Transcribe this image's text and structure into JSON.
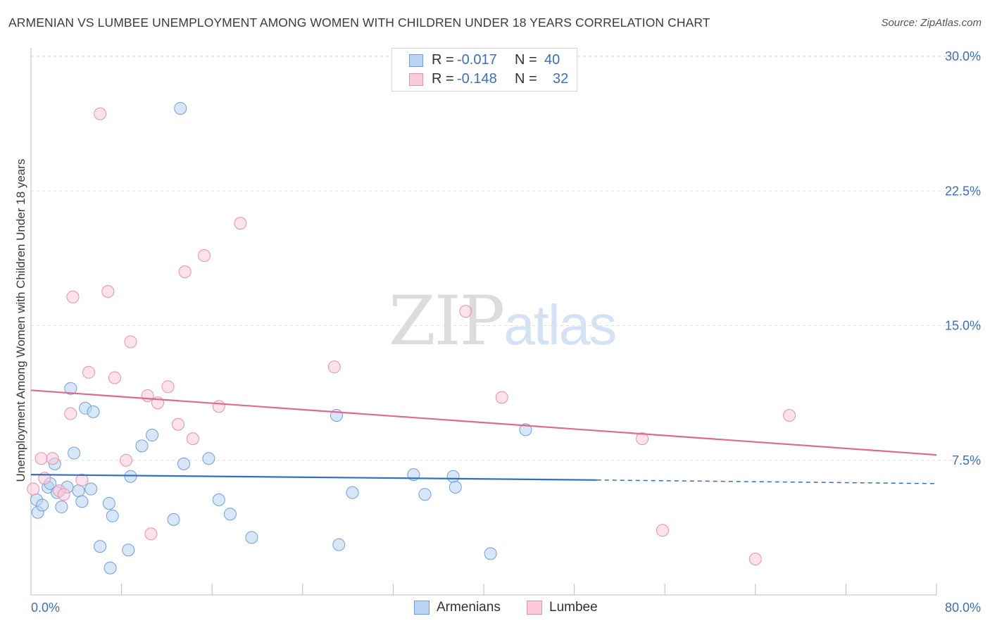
{
  "title": "ARMENIAN VS LUMBEE UNEMPLOYMENT AMONG WOMEN WITH CHILDREN UNDER 18 YEARS CORRELATION CHART",
  "source": "Source: ZipAtlas.com",
  "watermark": {
    "part1": "ZIP",
    "part2": "atlas"
  },
  "legend_top": [
    {
      "r_label": "R =",
      "r_value": "-0.017",
      "n_label": "N =",
      "n_value": "40"
    },
    {
      "r_label": "R =",
      "r_value": "-0.148",
      "n_label": "N =",
      "n_value": "32"
    }
  ],
  "legend_bottom": [
    {
      "label": "Armenians"
    },
    {
      "label": "Lumbee"
    }
  ],
  "colors": {
    "armenians_fill": "#b8d3f3",
    "armenians_stroke": "#6e9fdd",
    "armenians_line": "#2f6fc9",
    "lumbee_fill": "#fbcbd9",
    "lumbee_stroke": "#e990ad",
    "lumbee_line": "#e06892",
    "tick_label": "#3a6fc4",
    "grid": "#e0e0e0"
  },
  "chart_data": {
    "type": "scatter",
    "title": "ARMENIAN VS LUMBEE UNEMPLOYMENT AMONG WOMEN WITH CHILDREN UNDER 18 YEARS CORRELATION CHART",
    "xlabel": "",
    "ylabel": "Unemployment Among Women with Children Under 18 years",
    "xlim": [
      0,
      80
    ],
    "ylim": [
      0,
      30
    ],
    "x_tick_labels": [
      "0.0%",
      "80.0%"
    ],
    "y_ticks": [
      7.5,
      15.0,
      22.5,
      30.0
    ],
    "y_tick_labels": [
      "7.5%",
      "15.0%",
      "22.5%",
      "30.0%"
    ],
    "grid": true,
    "series": [
      {
        "name": "Armenians",
        "points": [
          [
            0.5,
            5.3
          ],
          [
            0.6,
            4.6
          ],
          [
            1.0,
            5.0
          ],
          [
            1.5,
            6.0
          ],
          [
            1.7,
            6.2
          ],
          [
            2.1,
            7.3
          ],
          [
            2.3,
            5.7
          ],
          [
            2.7,
            4.9
          ],
          [
            3.2,
            6.0
          ],
          [
            3.5,
            11.5
          ],
          [
            3.8,
            7.9
          ],
          [
            4.2,
            5.8
          ],
          [
            4.5,
            5.2
          ],
          [
            4.8,
            10.4
          ],
          [
            5.3,
            5.9
          ],
          [
            5.5,
            10.2
          ],
          [
            6.1,
            2.7
          ],
          [
            6.9,
            5.1
          ],
          [
            7.0,
            1.5
          ],
          [
            7.2,
            4.4
          ],
          [
            8.6,
            2.5
          ],
          [
            8.8,
            6.6
          ],
          [
            9.8,
            8.3
          ],
          [
            10.7,
            8.9
          ],
          [
            12.6,
            4.2
          ],
          [
            13.2,
            27.1
          ],
          [
            13.5,
            7.3
          ],
          [
            15.7,
            7.6
          ],
          [
            16.6,
            5.3
          ],
          [
            17.6,
            4.5
          ],
          [
            19.5,
            3.2
          ],
          [
            27.0,
            10.0
          ],
          [
            27.2,
            2.8
          ],
          [
            28.4,
            5.7
          ],
          [
            33.8,
            6.7
          ],
          [
            34.8,
            5.6
          ],
          [
            37.3,
            6.6
          ],
          [
            37.5,
            6.0
          ],
          [
            40.6,
            2.3
          ],
          [
            43.7,
            9.2
          ]
        ]
      },
      {
        "name": "Lumbee",
        "points": [
          [
            0.2,
            5.9
          ],
          [
            0.9,
            7.6
          ],
          [
            1.2,
            6.5
          ],
          [
            1.9,
            7.6
          ],
          [
            2.5,
            5.8
          ],
          [
            2.9,
            5.6
          ],
          [
            3.5,
            10.1
          ],
          [
            3.7,
            16.6
          ],
          [
            4.5,
            6.4
          ],
          [
            5.1,
            12.4
          ],
          [
            6.1,
            26.8
          ],
          [
            6.8,
            16.9
          ],
          [
            7.4,
            12.1
          ],
          [
            8.4,
            7.5
          ],
          [
            8.8,
            14.1
          ],
          [
            10.3,
            11.1
          ],
          [
            10.6,
            3.4
          ],
          [
            11.2,
            10.7
          ],
          [
            12.1,
            11.6
          ],
          [
            13.0,
            9.5
          ],
          [
            13.6,
            18.0
          ],
          [
            14.3,
            8.7
          ],
          [
            15.3,
            18.9
          ],
          [
            16.6,
            10.5
          ],
          [
            18.5,
            20.7
          ],
          [
            26.8,
            12.7
          ],
          [
            38.4,
            15.8
          ],
          [
            41.6,
            11.0
          ],
          [
            54.0,
            8.7
          ],
          [
            55.8,
            3.6
          ],
          [
            64.0,
            2.0
          ],
          [
            67.0,
            10.0
          ]
        ]
      }
    ],
    "trend_lines": [
      {
        "series": "Armenians",
        "start": [
          0,
          6.7
        ],
        "solid_end": [
          50,
          6.4
        ],
        "end": [
          80,
          6.2
        ]
      },
      {
        "series": "Lumbee",
        "start": [
          0,
          11.4
        ],
        "end": [
          80,
          7.8
        ]
      }
    ]
  },
  "axis": {
    "y_axis_label": "Unemployment Among Women with Children Under 18 years"
  }
}
